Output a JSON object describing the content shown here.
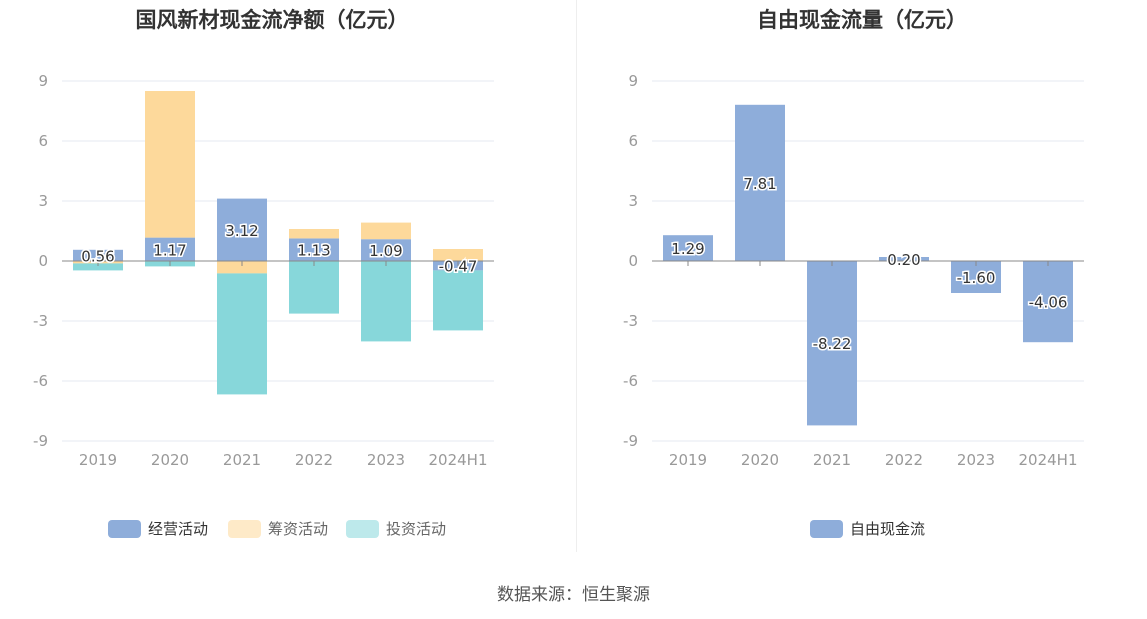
{
  "colors": {
    "operating": "#8eadda",
    "financing": "#fdd99b",
    "investing": "#87d7da",
    "fcf": "#8eadda",
    "axis_text": "#999999",
    "grid": "#e6e9f2",
    "zero_line": "#888888",
    "title": "#333333",
    "label_text": "#333333"
  },
  "source": "数据来源：恒生聚源",
  "chart_data": [
    {
      "type": "bar",
      "stacked": true,
      "title": "国风新材现金流净额（亿元）",
      "categories": [
        "2019",
        "2020",
        "2021",
        "2022",
        "2023",
        "2024H1"
      ],
      "ylim": [
        -9,
        9
      ],
      "yticks": [
        "9",
        "6",
        "3",
        "0",
        "-3",
        "-6",
        "-9"
      ],
      "grid": true,
      "legend_position": "bottom",
      "series": [
        {
          "name": "经营活动",
          "values": [
            0.56,
            1.17,
            3.12,
            1.13,
            1.09,
            -0.47
          ],
          "labels": [
            "0.56",
            "1.17",
            "3.12",
            "1.13",
            "1.09",
            "-0.47"
          ]
        },
        {
          "name": "筹资活动",
          "values": [
            -0.12,
            7.33,
            -0.62,
            0.47,
            0.83,
            0.6
          ]
        },
        {
          "name": "投资活动",
          "values": [
            -0.35,
            -0.27,
            -6.05,
            -2.63,
            -4.02,
            -3.0
          ]
        }
      ]
    },
    {
      "type": "bar",
      "title": "自由现金流量（亿元）",
      "categories": [
        "2019",
        "2020",
        "2021",
        "2022",
        "2023",
        "2024H1"
      ],
      "ylim": [
        -9,
        9
      ],
      "yticks": [
        "9",
        "6",
        "3",
        "0",
        "-3",
        "-6",
        "-9"
      ],
      "grid": true,
      "legend_position": "bottom",
      "series": [
        {
          "name": "自由现金流",
          "values": [
            1.29,
            7.81,
            -8.22,
            0.2,
            -1.6,
            -4.06
          ],
          "labels": [
            "1.29",
            "7.81",
            "-8.22",
            "0.20",
            "-1.60",
            "-4.06"
          ]
        }
      ]
    }
  ]
}
